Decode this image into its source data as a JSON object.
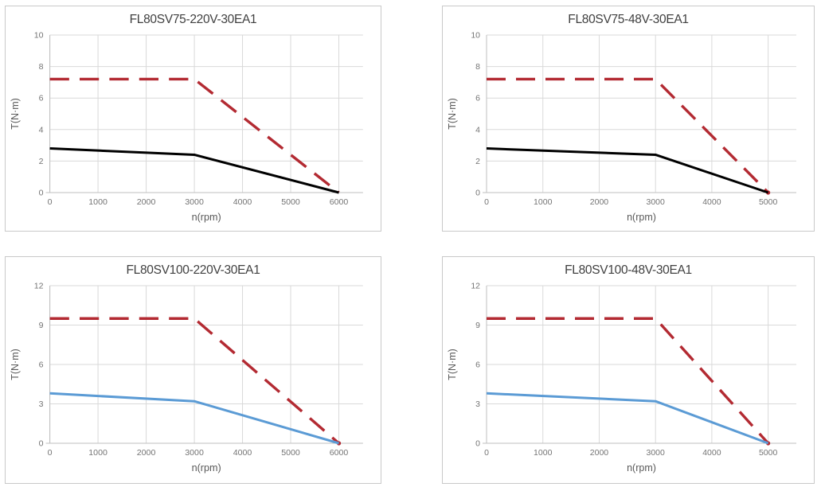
{
  "page": {
    "background": "#ffffff",
    "panel_border": "#c9c9c9"
  },
  "styles": {
    "grid_color": "#d9d9d9",
    "axis_color": "#bfbfbf",
    "tick_text_color": "#747474",
    "axis_label_color": "#595959",
    "title_color": "#404040",
    "red": "#b32a32",
    "blue": "#5b9bd5",
    "black": "#000000"
  },
  "chart_data": [
    {
      "type": "line",
      "title": "FL80SV75-220V-30EA1",
      "xlabel": "n(rpm)",
      "ylabel": "T(N·m)",
      "xlim": [
        0,
        6500
      ],
      "ylim": [
        0,
        10
      ],
      "x_ticks": [
        0,
        1000,
        2000,
        3000,
        4000,
        5000,
        6000
      ],
      "y_ticks": [
        0,
        2,
        4,
        6,
        8,
        10
      ],
      "grid": true,
      "legend": false,
      "series": [
        {
          "name": "peak-torque-dashed",
          "style": "dashed",
          "color": "#b32a32",
          "points": [
            [
              0,
              7.2
            ],
            [
              3000,
              7.2
            ],
            [
              6000,
              0
            ]
          ],
          "end_dot": false
        },
        {
          "name": "continuous-torque-solid",
          "style": "solid",
          "color": "#000000",
          "points": [
            [
              0,
              2.8
            ],
            [
              3000,
              2.4
            ],
            [
              6000,
              0
            ]
          ],
          "end_dot": false
        }
      ]
    },
    {
      "type": "line",
      "title": "FL80SV75-48V-30EA1",
      "xlabel": "n(rpm)",
      "ylabel": "T(N·m)",
      "xlim": [
        0,
        5500
      ],
      "ylim": [
        0,
        10
      ],
      "x_ticks": [
        0,
        1000,
        2000,
        3000,
        4000,
        5000
      ],
      "y_ticks": [
        0,
        2,
        4,
        6,
        8,
        10
      ],
      "grid": true,
      "legend": false,
      "series": [
        {
          "name": "peak-torque-dashed",
          "style": "dashed",
          "color": "#b32a32",
          "points": [
            [
              0,
              7.2
            ],
            [
              3000,
              7.2
            ],
            [
              5000,
              0
            ]
          ],
          "end_dot": true
        },
        {
          "name": "continuous-torque-solid",
          "style": "solid",
          "color": "#000000",
          "points": [
            [
              0,
              2.8
            ],
            [
              3000,
              2.4
            ],
            [
              5000,
              0
            ]
          ],
          "end_dot": false
        }
      ]
    },
    {
      "type": "line",
      "title": "FL80SV100-220V-30EA1",
      "xlabel": "n(rpm)",
      "ylabel": "T(N·m)",
      "xlim": [
        0,
        6500
      ],
      "ylim": [
        0,
        12
      ],
      "x_ticks": [
        0,
        1000,
        2000,
        3000,
        4000,
        5000,
        6000
      ],
      "y_ticks": [
        0,
        3,
        6,
        9,
        12
      ],
      "grid": true,
      "legend": false,
      "series": [
        {
          "name": "peak-torque-dashed",
          "style": "dashed",
          "color": "#b32a32",
          "points": [
            [
              0,
              9.5
            ],
            [
              3000,
              9.5
            ],
            [
              6000,
              0
            ]
          ],
          "end_dot": true
        },
        {
          "name": "continuous-torque-solid",
          "style": "solid",
          "color": "#5b9bd5",
          "points": [
            [
              0,
              3.8
            ],
            [
              3000,
              3.2
            ],
            [
              6000,
              0
            ]
          ],
          "end_dot": false
        }
      ]
    },
    {
      "type": "line",
      "title": "FL80SV100-48V-30EA1",
      "xlabel": "n(rpm)",
      "ylabel": "T(N·m)",
      "xlim": [
        0,
        5500
      ],
      "ylim": [
        0,
        12
      ],
      "x_ticks": [
        0,
        1000,
        2000,
        3000,
        4000,
        5000
      ],
      "y_ticks": [
        0,
        3,
        6,
        9,
        12
      ],
      "grid": true,
      "legend": false,
      "series": [
        {
          "name": "peak-torque-dashed",
          "style": "dashed",
          "color": "#b32a32",
          "points": [
            [
              0,
              9.5
            ],
            [
              3000,
              9.5
            ],
            [
              5000,
              0
            ]
          ],
          "end_dot": true
        },
        {
          "name": "continuous-torque-solid",
          "style": "solid",
          "color": "#5b9bd5",
          "points": [
            [
              0,
              3.8
            ],
            [
              3000,
              3.2
            ],
            [
              5000,
              0
            ]
          ],
          "end_dot": false
        }
      ]
    }
  ]
}
